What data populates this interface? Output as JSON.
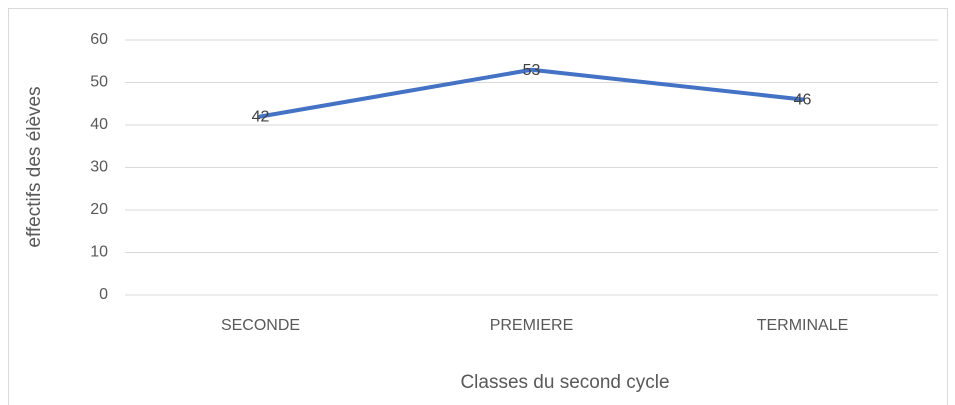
{
  "chart_data": {
    "type": "line",
    "categories": [
      "SECONDE",
      "PREMIERE",
      "TERMINALE"
    ],
    "series": [
      {
        "name": "effectifs",
        "color": "#4472c4",
        "values": [
          42,
          53,
          46
        ]
      }
    ],
    "ylim": [
      0,
      60
    ],
    "yticks": [
      0,
      10,
      20,
      30,
      40,
      50,
      60
    ],
    "grid": true,
    "xlabel": "Classes du second cycle",
    "ylabel": "effectifs des élèves"
  }
}
